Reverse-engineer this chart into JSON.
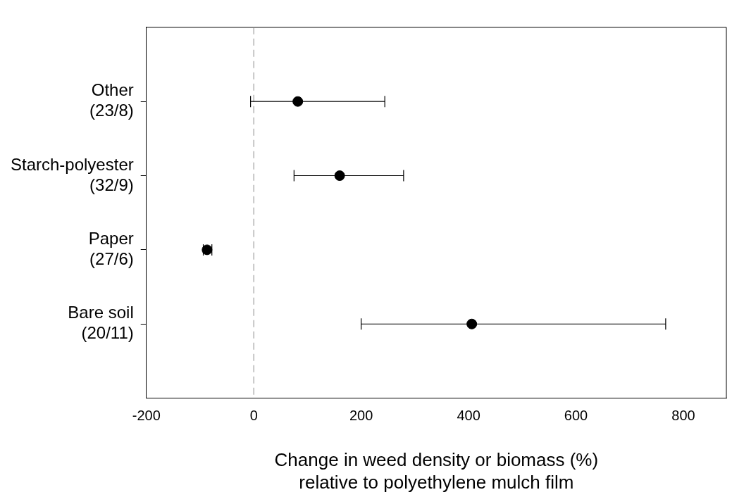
{
  "chart_data": {
    "type": "scatter",
    "orientation": "horizontal",
    "xlabel": "Change in weed density or biomass (%)\nrelative to polyethylene mulch film",
    "categories": [
      "Other\n(23/8)",
      "Starch-polyester\n(32/9)",
      "Paper\n(27/6)",
      "Bare soil\n(20/11)"
    ],
    "values": [
      82,
      160,
      -87,
      406
    ],
    "errors": [
      [
        -6,
        244
      ],
      [
        75,
        279
      ],
      [
        -94,
        -78
      ],
      [
        200,
        767
      ]
    ],
    "color": "#000000",
    "marker": "circle",
    "xlim": [
      -200,
      880
    ],
    "xticks": [
      -200,
      0,
      200,
      400,
      600,
      800
    ],
    "ref_lines": [
      {
        "axis": "x",
        "value": 0,
        "color": "#a0a0a0",
        "line_style": "dashed"
      }
    ],
    "grid": false,
    "legend": false
  }
}
